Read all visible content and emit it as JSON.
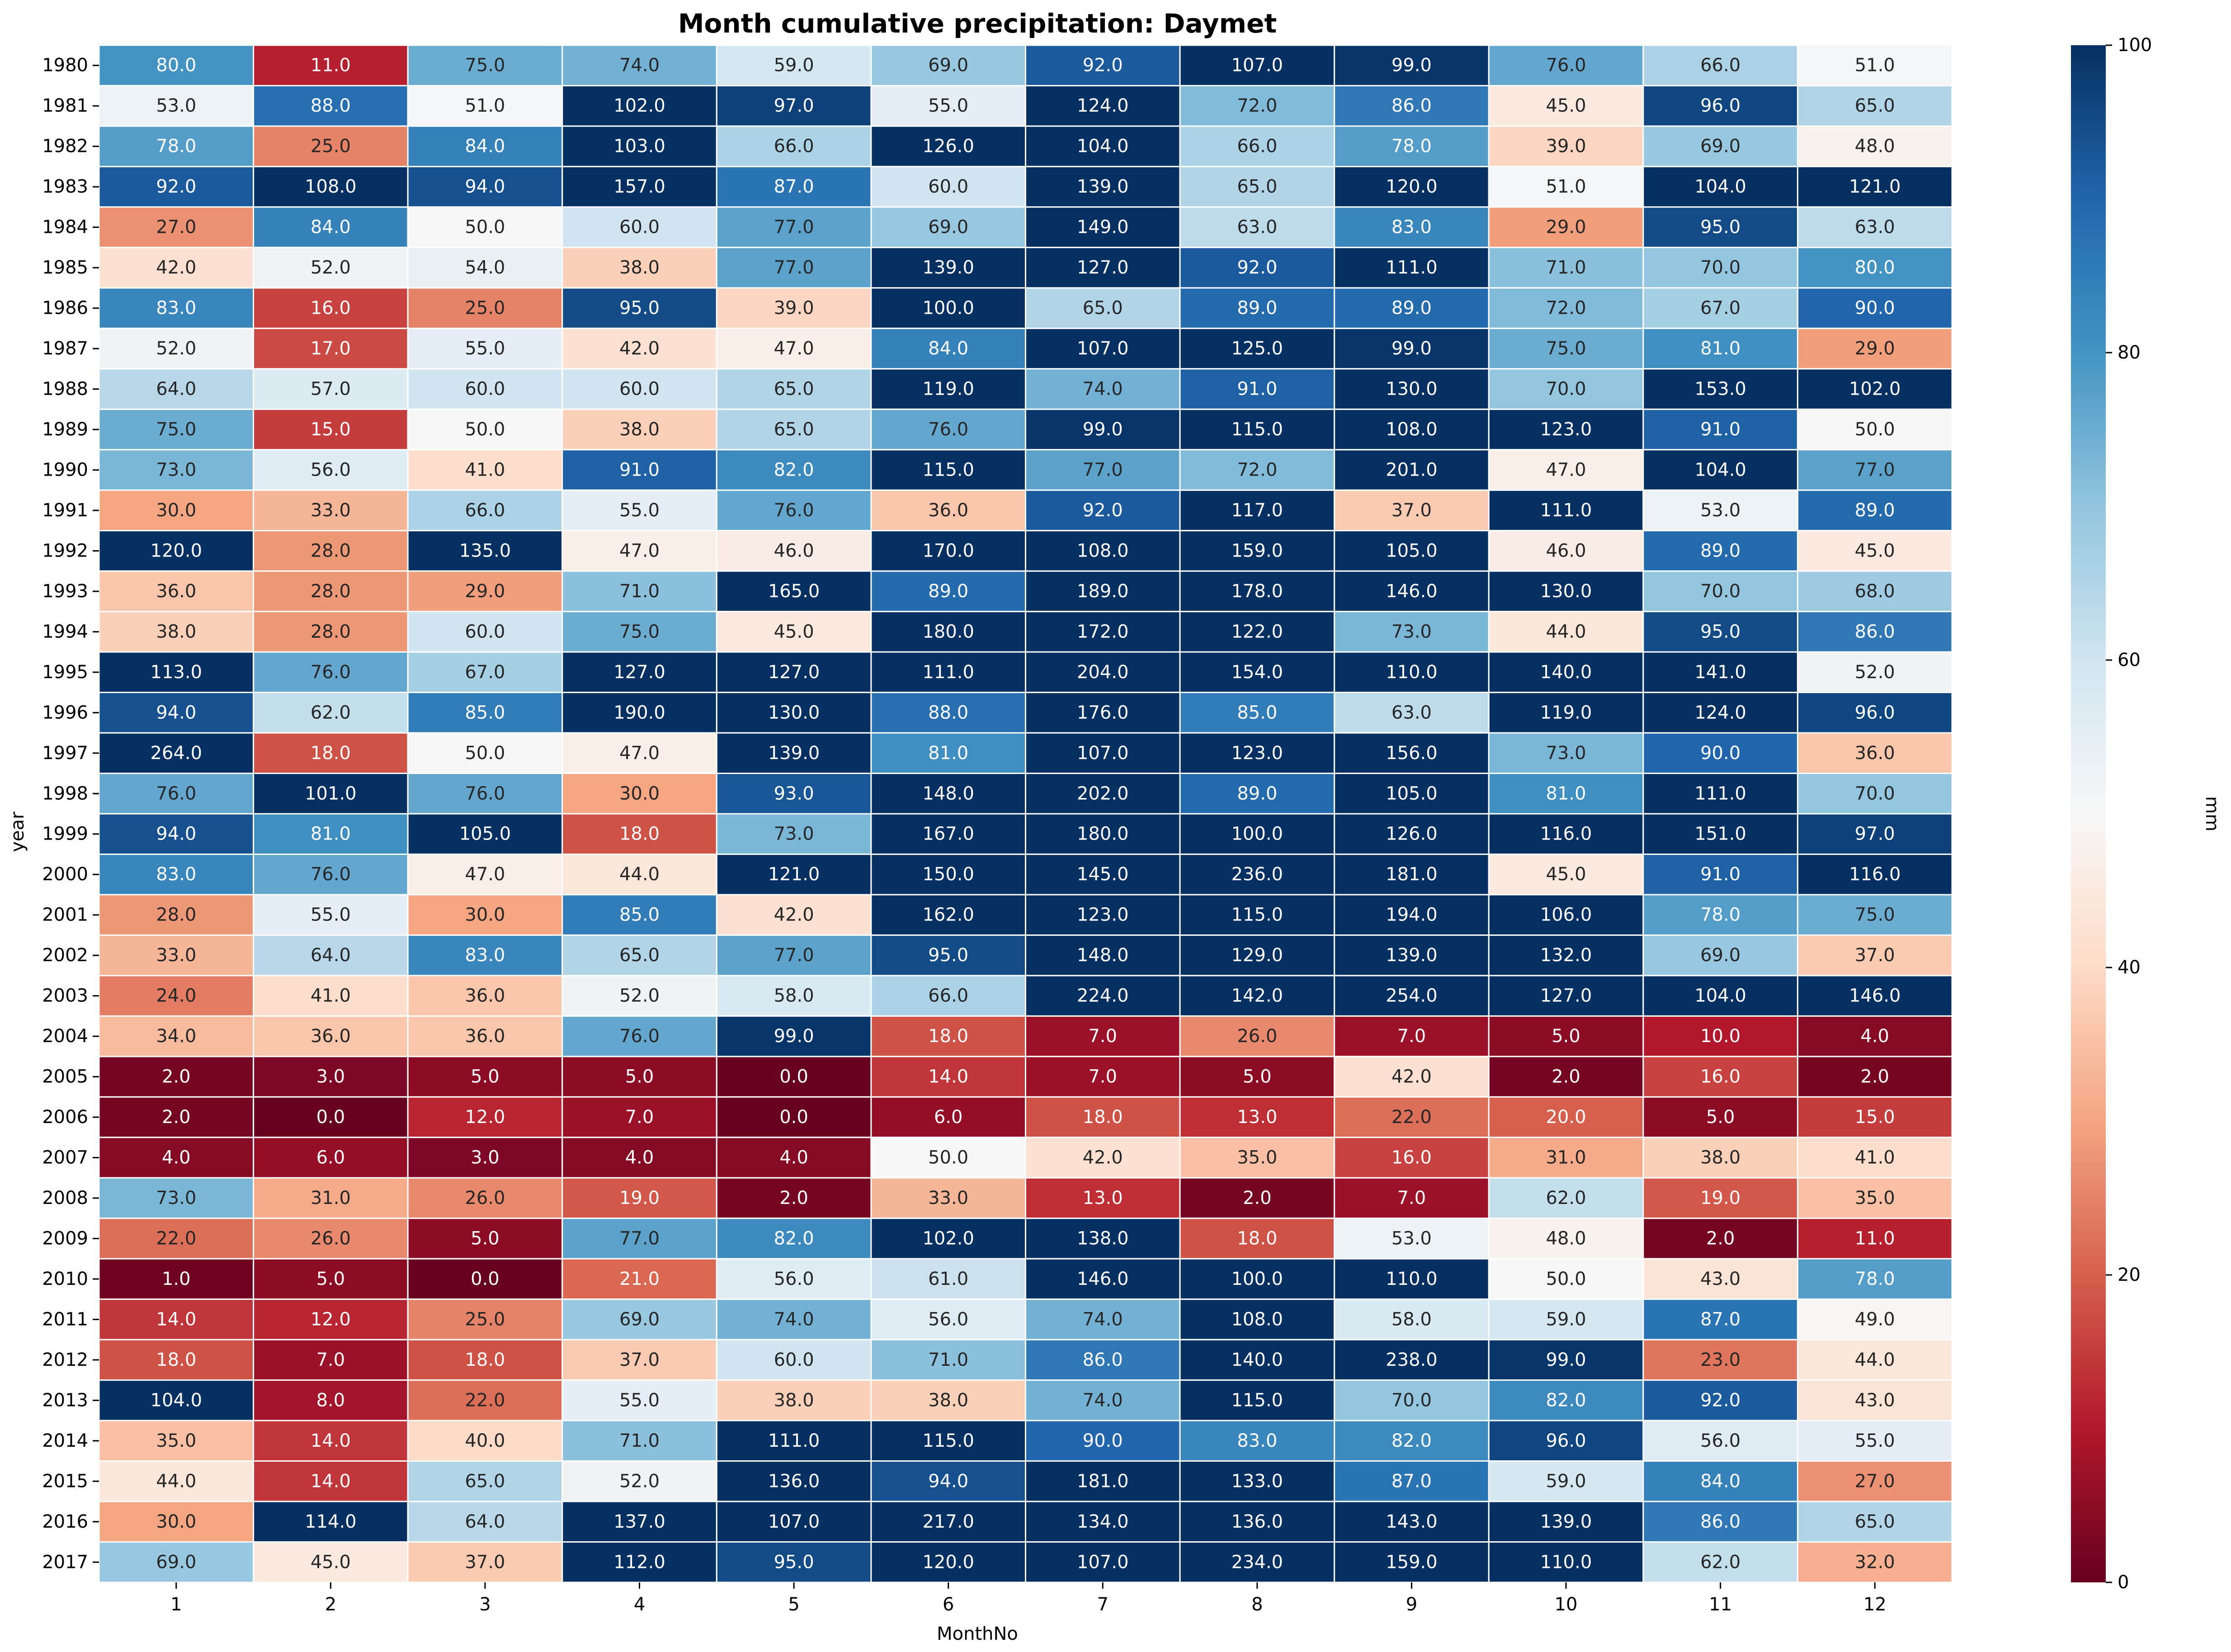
{
  "chart_data": {
    "type": "heatmap",
    "title": "Month cumulative precipitation: Daymet",
    "xlabel": "MonthNo",
    "ylabel": "year",
    "colorbar_label": "mm",
    "colormap": "RdBu",
    "color_range": [
      0,
      100
    ],
    "colorbar_ticks": [
      "0",
      "20",
      "40",
      "60",
      "80",
      "100"
    ],
    "x_categories": [
      "1",
      "2",
      "3",
      "4",
      "5",
      "6",
      "7",
      "8",
      "9",
      "10",
      "11",
      "12"
    ],
    "y_categories": [
      "1980",
      "1981",
      "1982",
      "1983",
      "1984",
      "1985",
      "1986",
      "1987",
      "1988",
      "1989",
      "1990",
      "1991",
      "1992",
      "1993",
      "1994",
      "1995",
      "1996",
      "1997",
      "1998",
      "1999",
      "2000",
      "2001",
      "2002",
      "2003",
      "2004",
      "2005",
      "2006",
      "2007",
      "2008",
      "2009",
      "2010",
      "2011",
      "2012",
      "2013",
      "2014",
      "2015",
      "2016",
      "2017"
    ],
    "values": [
      [
        80,
        11,
        75,
        74,
        59,
        69,
        92,
        107,
        99,
        76,
        66,
        51
      ],
      [
        53,
        88,
        51,
        102,
        97,
        55,
        124,
        72,
        86,
        45,
        96,
        65
      ],
      [
        78,
        25,
        84,
        103,
        66,
        126,
        104,
        66,
        78,
        39,
        69,
        48
      ],
      [
        92,
        108,
        94,
        157,
        87,
        60,
        139,
        65,
        120,
        51,
        104,
        121
      ],
      [
        27,
        84,
        50,
        60,
        77,
        69,
        149,
        63,
        83,
        29,
        95,
        63
      ],
      [
        42,
        52,
        54,
        38,
        77,
        139,
        127,
        92,
        111,
        71,
        70,
        80
      ],
      [
        83,
        16,
        25,
        95,
        39,
        100,
        65,
        89,
        89,
        72,
        67,
        90
      ],
      [
        52,
        17,
        55,
        42,
        47,
        84,
        107,
        125,
        99,
        75,
        81,
        29
      ],
      [
        64,
        57,
        60,
        60,
        65,
        119,
        74,
        91,
        130,
        70,
        153,
        102
      ],
      [
        75,
        15,
        50,
        38,
        65,
        76,
        99,
        115,
        108,
        123,
        91,
        50
      ],
      [
        73,
        56,
        41,
        91,
        82,
        115,
        77,
        72,
        201,
        47,
        104,
        77
      ],
      [
        30,
        33,
        66,
        55,
        76,
        36,
        92,
        117,
        37,
        111,
        53,
        89
      ],
      [
        120,
        28,
        135,
        47,
        46,
        170,
        108,
        159,
        105,
        46,
        89,
        45
      ],
      [
        36,
        28,
        29,
        71,
        165,
        89,
        189,
        178,
        146,
        130,
        70,
        68
      ],
      [
        38,
        28,
        60,
        75,
        45,
        180,
        172,
        122,
        73,
        44,
        95,
        86
      ],
      [
        113,
        76,
        67,
        127,
        127,
        111,
        204,
        154,
        110,
        140,
        141,
        52
      ],
      [
        94,
        62,
        85,
        190,
        130,
        88,
        176,
        85,
        63,
        119,
        124,
        96
      ],
      [
        264,
        18,
        50,
        47,
        139,
        81,
        107,
        123,
        156,
        73,
        90,
        36
      ],
      [
        76,
        101,
        76,
        30,
        93,
        148,
        202,
        89,
        105,
        81,
        111,
        70
      ],
      [
        94,
        81,
        105,
        18,
        73,
        167,
        180,
        100,
        126,
        116,
        151,
        97
      ],
      [
        83,
        76,
        47,
        44,
        121,
        150,
        145,
        236,
        181,
        45,
        91,
        116
      ],
      [
        28,
        55,
        30,
        85,
        42,
        162,
        123,
        115,
        194,
        106,
        78,
        75
      ],
      [
        33,
        64,
        83,
        65,
        77,
        95,
        148,
        129,
        139,
        132,
        69,
        37
      ],
      [
        24,
        41,
        36,
        52,
        58,
        66,
        224,
        142,
        254,
        127,
        104,
        146
      ],
      [
        34,
        36,
        36,
        76,
        99,
        18,
        7,
        26,
        7,
        5,
        10,
        4
      ],
      [
        2,
        3,
        5,
        5,
        0,
        14,
        7,
        5,
        42,
        2,
        16,
        2
      ],
      [
        2,
        0,
        12,
        7,
        0,
        6,
        18,
        13,
        22,
        20,
        5,
        15
      ],
      [
        4,
        6,
        3,
        4,
        4,
        50,
        42,
        35,
        16,
        31,
        38,
        41
      ],
      [
        73,
        31,
        26,
        19,
        2,
        33,
        13,
        2,
        7,
        62,
        19,
        35
      ],
      [
        22,
        26,
        5,
        77,
        82,
        102,
        138,
        18,
        53,
        48,
        2,
        11
      ],
      [
        1,
        5,
        0,
        21,
        56,
        61,
        146,
        100,
        110,
        50,
        43,
        78
      ],
      [
        14,
        12,
        25,
        69,
        74,
        56,
        74,
        108,
        58,
        59,
        87,
        49
      ],
      [
        18,
        7,
        18,
        37,
        60,
        71,
        86,
        140,
        238,
        99,
        23,
        44
      ],
      [
        104,
        8,
        22,
        55,
        38,
        38,
        74,
        115,
        70,
        82,
        92,
        43
      ],
      [
        35,
        14,
        40,
        71,
        111,
        115,
        90,
        83,
        82,
        96,
        56,
        55
      ],
      [
        44,
        14,
        65,
        52,
        136,
        94,
        181,
        133,
        87,
        59,
        84,
        27
      ],
      [
        30,
        114,
        64,
        137,
        107,
        217,
        134,
        136,
        143,
        139,
        86,
        65
      ],
      [
        69,
        45,
        37,
        112,
        95,
        120,
        107,
        234,
        159,
        110,
        62,
        32
      ]
    ]
  }
}
